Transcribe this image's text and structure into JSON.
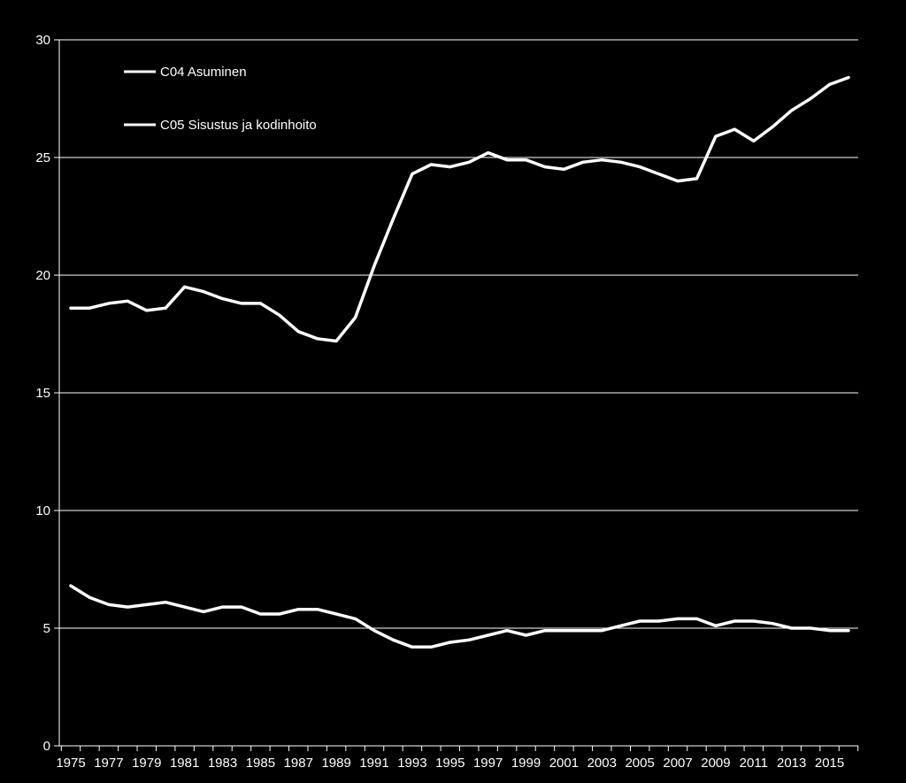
{
  "colors": {
    "background": "#000000",
    "series_line": "#ffffff",
    "gridline": "#ffffff",
    "text": "#ffffff"
  },
  "chart_data": {
    "type": "line",
    "title": "",
    "xlabel": "",
    "ylabel": "",
    "ylim": [
      0,
      30
    ],
    "y_ticks": [
      0,
      5,
      10,
      15,
      20,
      25,
      30
    ],
    "x_tick_labels": [
      "1975",
      "1977",
      "1979",
      "1981",
      "1983",
      "1985",
      "1987",
      "1989",
      "1991",
      "1993",
      "1995",
      "1997",
      "1999",
      "2001",
      "2003",
      "2005",
      "2007",
      "2009",
      "2011",
      "2013",
      "2015"
    ],
    "grid": true,
    "legend_position": "top-left",
    "x": [
      1975,
      1976,
      1977,
      1978,
      1979,
      1980,
      1981,
      1982,
      1983,
      1984,
      1985,
      1986,
      1987,
      1988,
      1989,
      1990,
      1991,
      1992,
      1993,
      1994,
      1995,
      1996,
      1997,
      1998,
      1999,
      2000,
      2001,
      2002,
      2003,
      2004,
      2005,
      2006,
      2007,
      2008,
      2009,
      2010,
      2011,
      2012,
      2013,
      2014,
      2015,
      2016
    ],
    "series": [
      {
        "name": "C04 Asuminen",
        "color": "#ffffff",
        "values": [
          18.6,
          18.6,
          18.8,
          18.9,
          18.5,
          18.6,
          19.5,
          19.3,
          19.0,
          18.8,
          18.8,
          18.3,
          17.6,
          17.3,
          17.2,
          18.2,
          20.4,
          22.4,
          24.3,
          24.7,
          24.6,
          24.8,
          25.2,
          24.9,
          24.9,
          24.6,
          24.5,
          24.8,
          24.9,
          24.8,
          24.6,
          24.3,
          24.0,
          24.1,
          25.9,
          26.2,
          25.7,
          26.3,
          27.0,
          27.5,
          28.1,
          28.4
        ]
      },
      {
        "name": "C05 Sisustus ja kodinhoito",
        "color": "#ffffff",
        "values": [
          6.8,
          6.3,
          6.0,
          5.9,
          6.0,
          6.1,
          5.9,
          5.7,
          5.9,
          5.9,
          5.6,
          5.6,
          5.8,
          5.8,
          5.6,
          5.4,
          4.9,
          4.5,
          4.2,
          4.2,
          4.4,
          4.5,
          4.7,
          4.9,
          4.7,
          4.9,
          4.9,
          4.9,
          4.9,
          5.1,
          5.3,
          5.3,
          5.4,
          5.4,
          5.1,
          5.3,
          5.3,
          5.2,
          5.0,
          5.0,
          4.9,
          4.9
        ]
      }
    ]
  }
}
